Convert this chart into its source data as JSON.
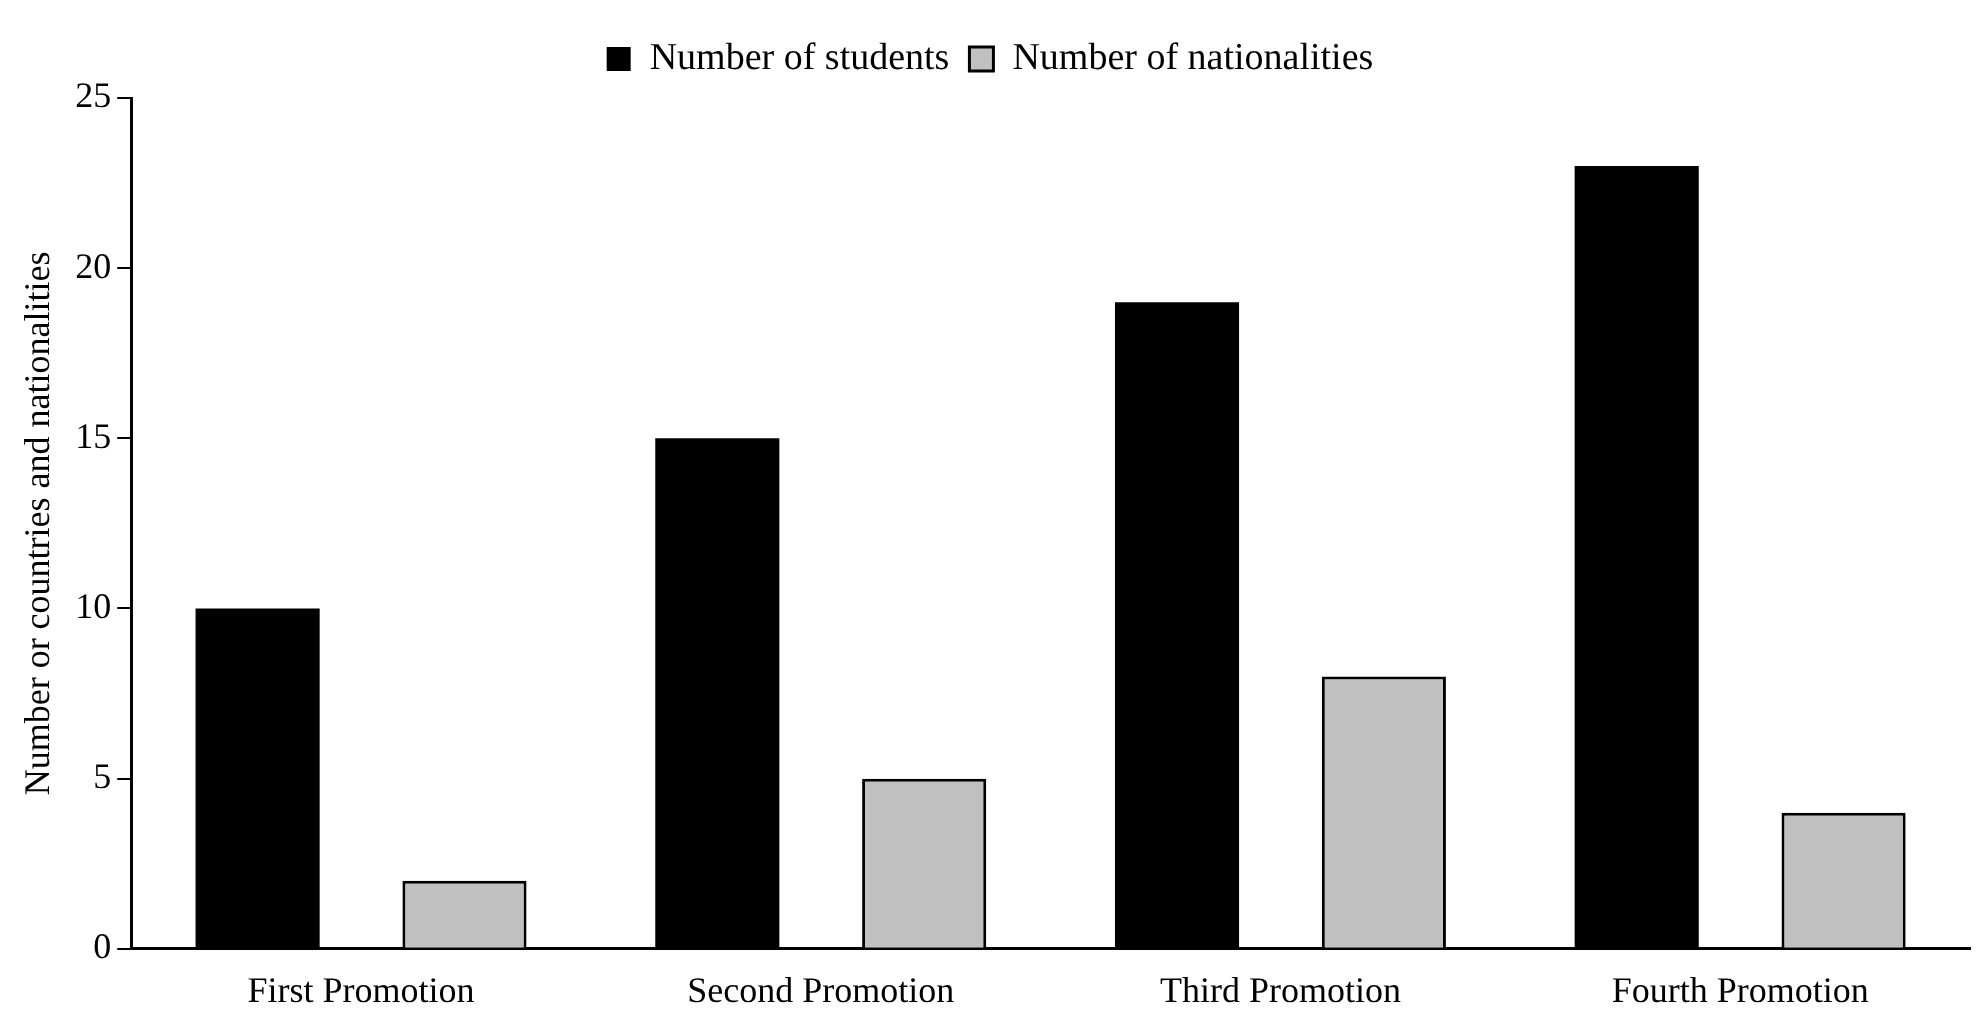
{
  "chart_data": {
    "type": "bar",
    "ylabel": "Number or countries and nationalities",
    "categories": [
      "First Promotion",
      "Second Promotion",
      "Third Promotion",
      "Fourth Promotion"
    ],
    "series": [
      {
        "name": "Number of students",
        "color": "#000000",
        "values": [
          10,
          15,
          19,
          23
        ]
      },
      {
        "name": "Number of nationalities",
        "color": "#c0c0c0",
        "values": [
          2,
          5,
          8,
          4
        ]
      }
    ],
    "ylim": [
      0,
      25
    ],
    "yticks": [
      0,
      5,
      10,
      15,
      20,
      25
    ],
    "grid": false,
    "legend": "top"
  }
}
